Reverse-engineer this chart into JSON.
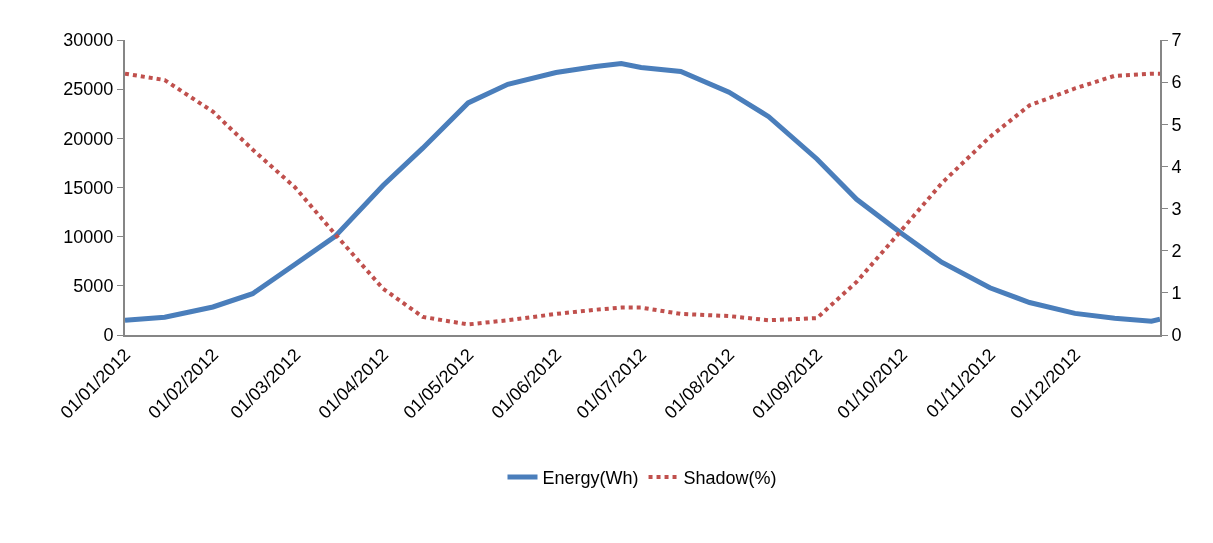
{
  "chart_data": {
    "type": "line",
    "x": [
      "2012-01-01",
      "2012-01-15",
      "2012-02-01",
      "2012-02-15",
      "2012-03-01",
      "2012-03-15",
      "2012-04-01",
      "2012-04-15",
      "2012-05-01",
      "2012-05-15",
      "2012-06-01",
      "2012-06-15",
      "2012-06-24",
      "2012-07-01",
      "2012-07-15",
      "2012-08-01",
      "2012-08-15",
      "2012-09-01",
      "2012-09-15",
      "2012-10-01",
      "2012-10-15",
      "2012-11-01",
      "2012-11-15",
      "2012-12-01",
      "2012-12-15",
      "2012-12-28",
      "2012-12-31"
    ],
    "series": [
      {
        "name": "Energy(Wh)",
        "color": "#4a7ebb",
        "line_style": "solid",
        "values": [
          1500,
          1800,
          2850,
          4200,
          7200,
          10000,
          15200,
          19000,
          23600,
          25500,
          26700,
          27300,
          27600,
          27200,
          26800,
          24700,
          22200,
          17900,
          13800,
          10300,
          7400,
          4800,
          3300,
          2200,
          1700,
          1400,
          1600
        ]
      },
      {
        "name": "Shadow(%)",
        "color": "#c0504d",
        "axis": "y2",
        "line_style": "dotted",
        "values": [
          6.2,
          6.05,
          5.3,
          4.4,
          3.5,
          2.4,
          1.1,
          0.43,
          0.25,
          0.35,
          0.5,
          0.6,
          0.65,
          0.65,
          0.5,
          0.45,
          0.35,
          0.4,
          1.26,
          2.5,
          3.6,
          4.7,
          5.45,
          5.85,
          6.15,
          6.2,
          6.2
        ]
      }
    ],
    "xlim": [
      "2012-01-01",
      "2012-12-31"
    ],
    "xticks": [
      {
        "value": "2012-01-01",
        "label": "01/01/2012"
      },
      {
        "value": "2012-02-01",
        "label": "01/02/2012"
      },
      {
        "value": "2012-03-01",
        "label": "01/03/2012"
      },
      {
        "value": "2012-04-01",
        "label": "01/04/2012"
      },
      {
        "value": "2012-05-01",
        "label": "01/05/2012"
      },
      {
        "value": "2012-06-01",
        "label": "01/06/2012"
      },
      {
        "value": "2012-07-01",
        "label": "01/07/2012"
      },
      {
        "value": "2012-08-01",
        "label": "01/08/2012"
      },
      {
        "value": "2012-09-01",
        "label": "01/09/2012"
      },
      {
        "value": "2012-10-01",
        "label": "01/10/2012"
      },
      {
        "value": "2012-11-01",
        "label": "01/11/2012"
      },
      {
        "value": "2012-12-01",
        "label": "01/12/2012"
      }
    ],
    "ylim": [
      0,
      30000
    ],
    "yticks": [
      0,
      5000,
      10000,
      15000,
      20000,
      25000,
      30000
    ],
    "y2lim": [
      0,
      7
    ],
    "y2ticks": [
      0,
      1,
      2,
      3,
      4,
      5,
      6,
      7
    ],
    "grid": false,
    "legend": "bottom",
    "marker": "none"
  }
}
